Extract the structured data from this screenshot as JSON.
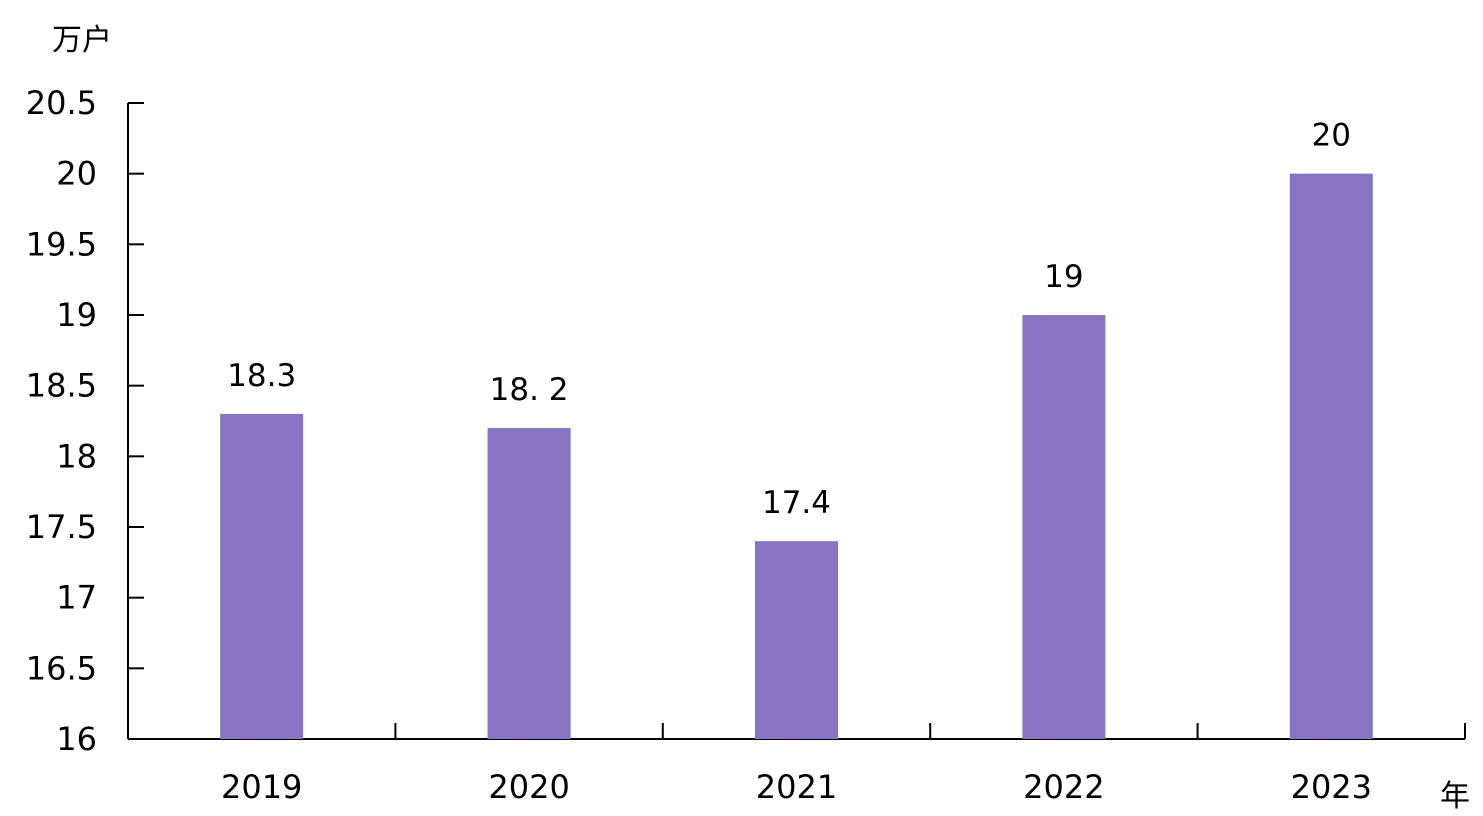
{
  "chart_data": {
    "type": "bar",
    "title": "",
    "ylabel": "万户",
    "xlabel": "年",
    "categories": [
      "2019",
      "2020",
      "2021",
      "2022",
      "2023"
    ],
    "values": [
      18.3,
      18.2,
      17.4,
      19,
      20
    ],
    "data_labels": [
      "18.3",
      "18. 2",
      "17.4",
      "19",
      "20"
    ],
    "ylim": [
      16,
      20.5
    ],
    "yticks": [
      "16",
      "16.5",
      "17",
      "17.5",
      "18",
      "18.5",
      "19",
      "19.5",
      "20",
      "20.5"
    ],
    "grid": false,
    "legend": "none",
    "bar_color": "#8773c1"
  }
}
